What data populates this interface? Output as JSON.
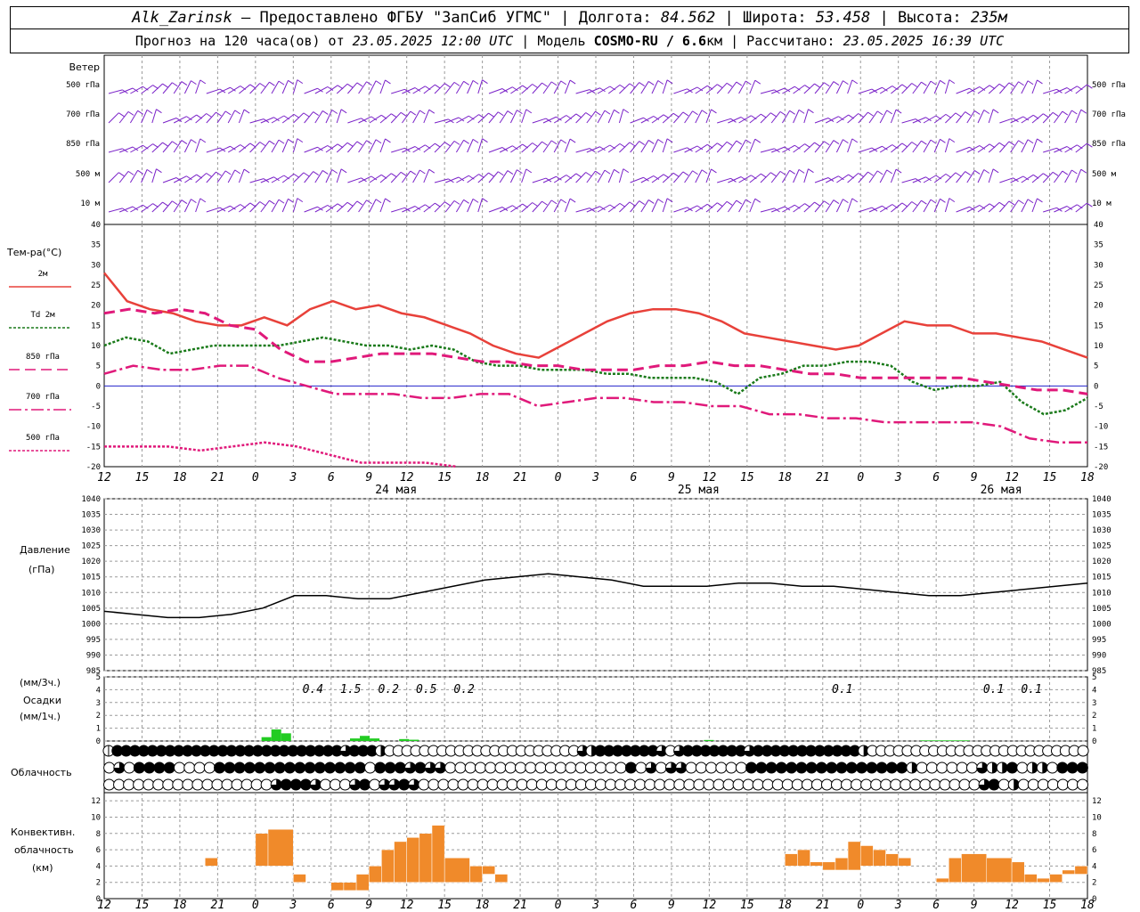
{
  "header": {
    "station": "Alk_Zarinsk",
    "provider": " – Предоставлено ФГБУ \"ЗапСиб УГМС\" | Долгота: ",
    "lon": "84.562",
    "lat_label": " | Широта: ",
    "lat": "53.458",
    "alt_label": " | Высота: ",
    "alt": "235м",
    "forecast_label": "Прогноз на 120 часа(ов) от ",
    "init_time": "23.05.2025 12:00 UTC",
    "model_label": " | Модель ",
    "model": "COSMO-RU / 6.6",
    "model_unit": "км",
    "calc_label": " | Рассчитано: ",
    "calc_time": "23.05.2025 16:39 UTC"
  },
  "colors": {
    "t2m": "#e8413a",
    "td": "#1a7a1a",
    "t850": "#e0197a",
    "t700": "#e0197a",
    "t500": "#e0197a",
    "wind": "#7a22c8",
    "precip": "#22cc22",
    "conv": "#f08a2a",
    "zero_line": "#2222cc"
  },
  "wind_panel": {
    "title": "Ветер",
    "levels": [
      "500 гПа",
      "700 гПа",
      "850 гПа",
      "500 м",
      "10 м"
    ]
  },
  "temp_panel": {
    "title": "Тем-ра(°C)",
    "legend": [
      {
        "key": "t2m",
        "label": "2м"
      },
      {
        "key": "td",
        "label": "Td  2м"
      },
      {
        "key": "t850",
        "label": "850 гПа"
      },
      {
        "key": "t700",
        "label": "700 гПа"
      },
      {
        "key": "t500",
        "label": "500 гПа"
      }
    ]
  },
  "pressure_panel": {
    "title": "Давление",
    "unit": "(гПа)"
  },
  "precip_panel": {
    "unit_3h": "(мм/3ч.)",
    "title": "Осадки",
    "unit_1h": "(мм/1ч.)"
  },
  "cloud_panel": {
    "title": "Облачность"
  },
  "conv_panel": {
    "title_1": "Конвективн.",
    "title_2": "облачность",
    "unit": "(км)"
  },
  "date_labels": [
    "24 мая",
    "25 мая",
    "26 мая"
  ],
  "chart_data": {
    "type": "line",
    "x_ticks": [
      "12",
      "15",
      "18",
      "21",
      "0",
      "3",
      "6",
      "9",
      "12",
      "15",
      "18",
      "21",
      "0",
      "3",
      "6",
      "9",
      "12",
      "15",
      "18",
      "21",
      "0",
      "3",
      "6",
      "9",
      "12",
      "15",
      "18"
    ],
    "hours_from_start": [
      0,
      3,
      6,
      9,
      12,
      15,
      18,
      21,
      24,
      27,
      30,
      33,
      36,
      39,
      42,
      45,
      48,
      51,
      54,
      57,
      60,
      63,
      66,
      69,
      72,
      75,
      78
    ],
    "temperature": {
      "ylim": [
        -20,
        40
      ],
      "y_ticks": [
        40,
        35,
        30,
        25,
        20,
        15,
        10,
        5,
        0,
        -5,
        -10,
        -15,
        -20
      ],
      "series": [
        {
          "name": "2м",
          "values": [
            28,
            21,
            19,
            18,
            16,
            15,
            15,
            17,
            15,
            19,
            21,
            19,
            20,
            18,
            17,
            15,
            13,
            10,
            8,
            7,
            10,
            13,
            16,
            18,
            19,
            19,
            18,
            16,
            13,
            12,
            11,
            10,
            9,
            10,
            13,
            16,
            15,
            15,
            13,
            13,
            12,
            11,
            9,
            7
          ]
        },
        {
          "name": "Td  2м",
          "values": [
            10,
            12,
            11,
            8,
            9,
            10,
            10,
            10,
            10,
            11,
            12,
            11,
            10,
            10,
            9,
            10,
            9,
            6,
            5,
            5,
            4,
            4,
            4,
            3,
            3,
            2,
            2,
            2,
            1,
            -2,
            2,
            3,
            5,
            5,
            6,
            6,
            5,
            1,
            -1,
            0,
            0,
            1,
            -4,
            -7,
            -6,
            -3
          ]
        },
        {
          "name": "850 гПа",
          "values": [
            18,
            19,
            18,
            19,
            18,
            15,
            14,
            9,
            6,
            6,
            7,
            8,
            8,
            8,
            7,
            6,
            6,
            5,
            5,
            4,
            4,
            4,
            5,
            5,
            6,
            5,
            5,
            4,
            3,
            3,
            2,
            2,
            2,
            2,
            2,
            1,
            0,
            -1,
            -1,
            -2
          ]
        },
        {
          "name": "700 гПа",
          "values": [
            3,
            5,
            4,
            4,
            5,
            5,
            2,
            0,
            -2,
            -2,
            -2,
            -3,
            -3,
            -2,
            -2,
            -5,
            -4,
            -3,
            -3,
            -4,
            -4,
            -5,
            -5,
            -7,
            -7,
            -8,
            -8,
            -9,
            -9,
            -9,
            -9,
            -10,
            -13,
            -14,
            -14
          ]
        },
        {
          "name": "500 гПа",
          "values": [
            -15,
            -15,
            -15,
            -16,
            -15,
            -14,
            -15,
            -17,
            -19,
            -19,
            -19,
            -20
          ]
        }
      ]
    },
    "pressure": {
      "ylim": [
        985,
        1040
      ],
      "y_ticks": [
        1040,
        1035,
        1030,
        1025,
        1020,
        1015,
        1010,
        1005,
        1000,
        995,
        990,
        985
      ],
      "values": [
        1004,
        1003,
        1002,
        1002,
        1003,
        1005,
        1009,
        1009,
        1008,
        1008,
        1010,
        1012,
        1014,
        1015,
        1016,
        1015,
        1014,
        1012,
        1012,
        1012,
        1013,
        1013,
        1012,
        1012,
        1011,
        1010,
        1009,
        1009,
        1010,
        1011,
        1012,
        1013
      ]
    },
    "precip": {
      "ylim": [
        0,
        5
      ],
      "y_ticks": [
        5,
        4,
        3,
        2,
        1,
        0
      ],
      "bars_1h": [
        0,
        0,
        0,
        0,
        0,
        0,
        0,
        0,
        0,
        0,
        0,
        0,
        0,
        0,
        0,
        0,
        0.3,
        0.9,
        0.6,
        0,
        0,
        0,
        0,
        0,
        0,
        0.2,
        0.4,
        0.2,
        0,
        0,
        0.15,
        0.1,
        0,
        0,
        0,
        0,
        0,
        0,
        0,
        0,
        0,
        0,
        0,
        0,
        0,
        0,
        0,
        0,
        0,
        0,
        0,
        0,
        0,
        0,
        0,
        0,
        0,
        0,
        0,
        0,
        0,
        0.08,
        0,
        0,
        0,
        0,
        0,
        0,
        0,
        0,
        0,
        0,
        0,
        0,
        0,
        0,
        0,
        0,
        0,
        0,
        0,
        0,
        0,
        0.05,
        0.05,
        0.05,
        0.05,
        0.05,
        0,
        0,
        0,
        0,
        0,
        0,
        0,
        0,
        0,
        0,
        0,
        0
      ],
      "totals_3h": [
        {
          "hour": 15,
          "value": "0.4"
        },
        {
          "hour": 18,
          "value": "1.5"
        },
        {
          "hour": 21,
          "value": "0.2"
        },
        {
          "hour": 24,
          "value": "0.5"
        },
        {
          "hour": 27,
          "value": "0.2"
        },
        {
          "hour": 57,
          "value": "0.1"
        },
        {
          "hour": 69,
          "value": "0.1"
        },
        {
          "hour": 72,
          "value": "0.1"
        }
      ]
    },
    "clouds": {
      "rows": [
        [
          1,
          4,
          4,
          4,
          4,
          4,
          4,
          4,
          4,
          4,
          4,
          4,
          4,
          4,
          4,
          4,
          4,
          4,
          4,
          4,
          4,
          4,
          4,
          4,
          4,
          4,
          4,
          3,
          4,
          4,
          4,
          2,
          0,
          0,
          0,
          0,
          0,
          0,
          0,
          0,
          0,
          0,
          0,
          0,
          0,
          0,
          0,
          0,
          0,
          0,
          0,
          0,
          0,
          0,
          3,
          2,
          4,
          4,
          4,
          4,
          4,
          4,
          4,
          3,
          0,
          3,
          4,
          4,
          4,
          4,
          4,
          4,
          4,
          3,
          4,
          4,
          4,
          4,
          4,
          4,
          4,
          4,
          4,
          4,
          4,
          4,
          2,
          0,
          0,
          0,
          0,
          0,
          0,
          0,
          0,
          0,
          0,
          0,
          0,
          0,
          0,
          0,
          0,
          0,
          0,
          0,
          0,
          0,
          0,
          0,
          0,
          0
        ],
        [
          0,
          3,
          0,
          4,
          4,
          4,
          4,
          0,
          0,
          0,
          0,
          4,
          4,
          4,
          4,
          4,
          4,
          4,
          4,
          4,
          4,
          4,
          4,
          4,
          4,
          4,
          0,
          4,
          4,
          4,
          3,
          4,
          3,
          3,
          0,
          0,
          0,
          0,
          0,
          0,
          0,
          0,
          0,
          0,
          0,
          0,
          0,
          0,
          0,
          0,
          0,
          0,
          4,
          0,
          3,
          0,
          3,
          3,
          0,
          0,
          0,
          0,
          0,
          0,
          4,
          4,
          4,
          4,
          4,
          4,
          4,
          4,
          4,
          4,
          4,
          4,
          4,
          4,
          4,
          4,
          2,
          0,
          0,
          0,
          0,
          0,
          0,
          3,
          2,
          2,
          4,
          0,
          2,
          2,
          0,
          4,
          4,
          4
        ],
        [
          0,
          0,
          0,
          0,
          0,
          0,
          0,
          0,
          0,
          0,
          0,
          0,
          0,
          0,
          0,
          0,
          0,
          3,
          4,
          4,
          4,
          3,
          0,
          0,
          0,
          3,
          4,
          0,
          3,
          3,
          4,
          3,
          0,
          0,
          0,
          0,
          0,
          0,
          0,
          0,
          0,
          0,
          0,
          0,
          0,
          0,
          0,
          0,
          0,
          0,
          0,
          0,
          0,
          0,
          0,
          0,
          0,
          0,
          0,
          0,
          0,
          0,
          0,
          0,
          0,
          0,
          0,
          0,
          0,
          0,
          0,
          0,
          0,
          0,
          0,
          0,
          0,
          0,
          0,
          0,
          0,
          0,
          0,
          0,
          0,
          0,
          0,
          0,
          0,
          3,
          4,
          0,
          2,
          0,
          0,
          0,
          0,
          0,
          0,
          0
        ]
      ]
    },
    "convective": {
      "ylim": [
        0,
        13
      ],
      "y_ticks": [
        12,
        10,
        8,
        6,
        4,
        2,
        0
      ],
      "bars": [
        {
          "h0": 8,
          "h1": 9,
          "base": 4,
          "top": 5
        },
        {
          "h0": 12,
          "h1": 13,
          "base": 4,
          "top": 8
        },
        {
          "h0": 13,
          "h1": 15,
          "base": 4,
          "top": 8.5
        },
        {
          "h0": 15,
          "h1": 16,
          "base": 2,
          "top": 3
        },
        {
          "h0": 18,
          "h1": 19,
          "base": 1,
          "top": 2
        },
        {
          "h0": 19,
          "h1": 20,
          "base": 1,
          "top": 2
        },
        {
          "h0": 20,
          "h1": 21,
          "base": 1,
          "top": 3
        },
        {
          "h0": 21,
          "h1": 22,
          "base": 2,
          "top": 4
        },
        {
          "h0": 22,
          "h1": 23,
          "base": 2,
          "top": 6
        },
        {
          "h0": 23,
          "h1": 24,
          "base": 2,
          "top": 7
        },
        {
          "h0": 24,
          "h1": 25,
          "base": 2,
          "top": 7.5
        },
        {
          "h0": 25,
          "h1": 26,
          "base": 2,
          "top": 8
        },
        {
          "h0": 26,
          "h1": 27,
          "base": 2,
          "top": 9
        },
        {
          "h0": 27,
          "h1": 29,
          "base": 2,
          "top": 5
        },
        {
          "h0": 29,
          "h1": 30,
          "base": 2,
          "top": 4
        },
        {
          "h0": 30,
          "h1": 31,
          "base": 3,
          "top": 4
        },
        {
          "h0": 31,
          "h1": 32,
          "base": 2,
          "top": 3
        },
        {
          "h0": 54,
          "h1": 55,
          "base": 4,
          "top": 5.5
        },
        {
          "h0": 55,
          "h1": 56,
          "base": 4,
          "top": 6
        },
        {
          "h0": 56,
          "h1": 57,
          "base": 4,
          "top": 4.5
        },
        {
          "h0": 57,
          "h1": 58,
          "base": 3.5,
          "top": 4.5
        },
        {
          "h0": 58,
          "h1": 59,
          "base": 3.5,
          "top": 5
        },
        {
          "h0": 59,
          "h1": 60,
          "base": 3.5,
          "top": 7
        },
        {
          "h0": 60,
          "h1": 61,
          "base": 4,
          "top": 6.5
        },
        {
          "h0": 61,
          "h1": 62,
          "base": 4,
          "top": 6
        },
        {
          "h0": 62,
          "h1": 63,
          "base": 4,
          "top": 5.5
        },
        {
          "h0": 63,
          "h1": 64,
          "base": 4,
          "top": 5
        },
        {
          "h0": 66,
          "h1": 67,
          "base": 2,
          "top": 2.5
        },
        {
          "h0": 67,
          "h1": 68,
          "base": 2,
          "top": 5
        },
        {
          "h0": 68,
          "h1": 70,
          "base": 2,
          "top": 5.5
        },
        {
          "h0": 70,
          "h1": 72,
          "base": 2,
          "top": 5
        },
        {
          "h0": 72,
          "h1": 73,
          "base": 2,
          "top": 4.5
        },
        {
          "h0": 73,
          "h1": 74,
          "base": 2,
          "top": 3
        },
        {
          "h0": 74,
          "h1": 75,
          "base": 2,
          "top": 2.5
        },
        {
          "h0": 75,
          "h1": 76,
          "base": 2,
          "top": 3
        },
        {
          "h0": 76,
          "h1": 77,
          "base": 3,
          "top": 3.5
        },
        {
          "h0": 77,
          "h1": 78,
          "base": 3,
          "top": 4
        }
      ]
    }
  }
}
